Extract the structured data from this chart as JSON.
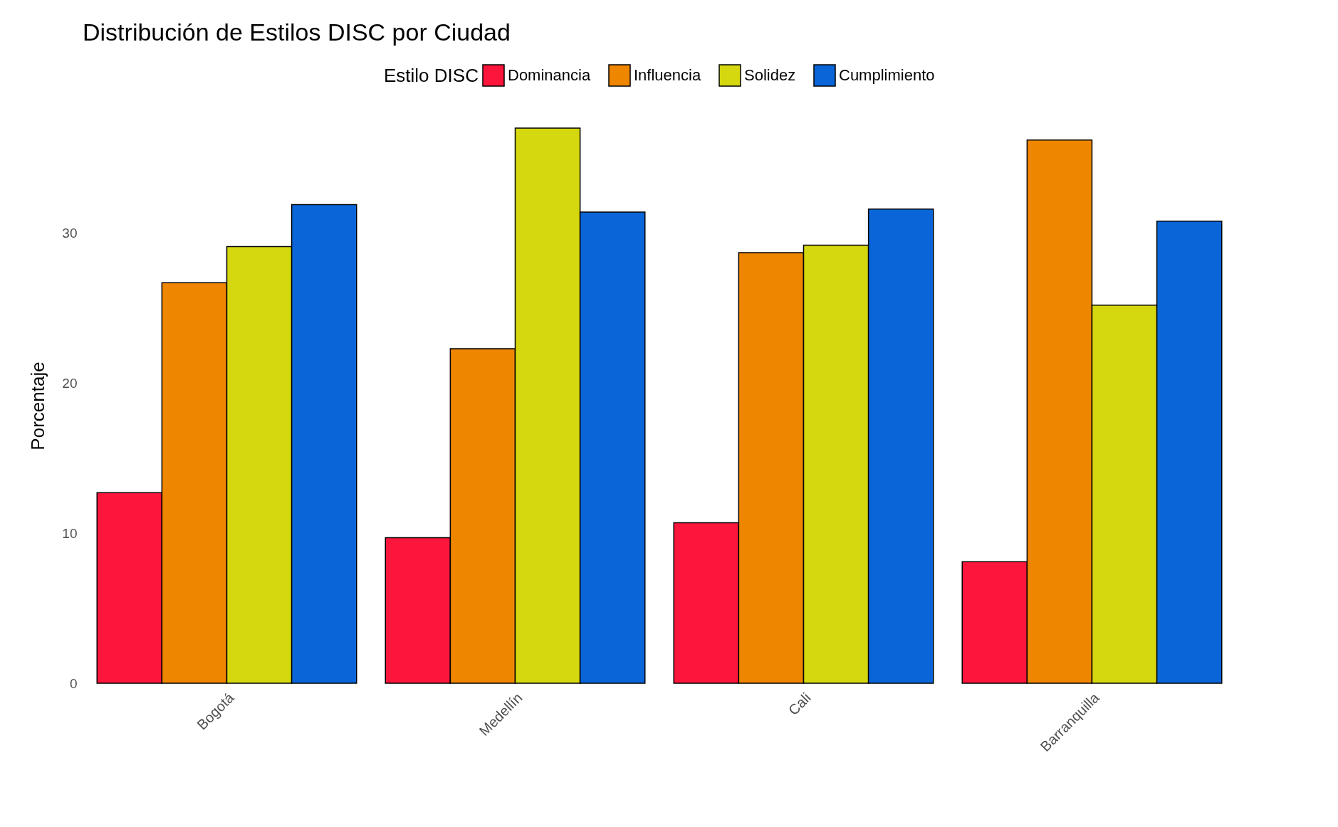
{
  "chart_data": {
    "type": "bar",
    "title": "Distribución de Estilos DISC por Ciudad",
    "ylabel": "Porcentaje",
    "legend_title": "Estilo DISC",
    "legend": "top",
    "categories": [
      "Bogotá",
      "Medellín",
      "Cali",
      "Barranquilla"
    ],
    "series": [
      {
        "name": "Dominancia",
        "color": "#fc163c",
        "values": [
          12.7,
          9.7,
          10.7,
          8.1
        ]
      },
      {
        "name": "Influencia",
        "color": "#ee8600",
        "values": [
          26.7,
          22.3,
          28.7,
          36.2
        ]
      },
      {
        "name": "Solidez",
        "color": "#d5d70f",
        "values": [
          29.1,
          37.0,
          29.2,
          25.2
        ]
      },
      {
        "name": "Cumplimiento",
        "color": "#0a66d8",
        "values": [
          31.9,
          31.4,
          31.6,
          30.8
        ]
      }
    ],
    "ylim": [
      0,
      37.0
    ],
    "yticks": [
      0,
      10,
      20,
      30
    ]
  }
}
